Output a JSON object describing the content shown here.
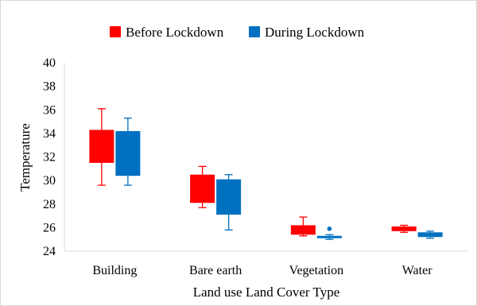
{
  "chart_data": {
    "type": "boxplot",
    "title": "",
    "xlabel": "Land use Land Cover Type",
    "ylabel": "Temperature",
    "ylim": [
      24,
      40
    ],
    "yticks": [
      24,
      26,
      28,
      30,
      32,
      34,
      36,
      38,
      40
    ],
    "grid": false,
    "legend_position": "top",
    "categories": [
      "Building",
      "Bare earth",
      "Vegetation",
      "Water"
    ],
    "series": [
      {
        "name": "Before Lockdown",
        "color": "#ff0000",
        "boxes": [
          {
            "min": 29.6,
            "q1": 31.5,
            "median": 31.6,
            "q3": 34.3,
            "max": 36.1,
            "outliers": []
          },
          {
            "min": 27.7,
            "q1": 28.1,
            "median": 28.2,
            "q3": 30.5,
            "max": 31.2,
            "outliers": []
          },
          {
            "min": 25.3,
            "q1": 25.4,
            "median": 25.5,
            "q3": 26.2,
            "max": 26.9,
            "outliers": []
          },
          {
            "min": 25.6,
            "q1": 25.7,
            "median": 25.9,
            "q3": 26.1,
            "max": 26.2,
            "outliers": []
          }
        ]
      },
      {
        "name": "During Lockdown",
        "color": "#0070c0",
        "boxes": [
          {
            "min": 29.6,
            "q1": 30.4,
            "median": 30.5,
            "q3": 34.2,
            "max": 35.3,
            "outliers": []
          },
          {
            "min": 25.8,
            "q1": 27.1,
            "median": 27.2,
            "q3": 30.1,
            "max": 30.5,
            "outliers": []
          },
          {
            "min": 25.0,
            "q1": 25.1,
            "median": 25.2,
            "q3": 25.3,
            "max": 25.4,
            "outliers": [
              25.9
            ]
          },
          {
            "min": 25.1,
            "q1": 25.2,
            "median": 25.5,
            "q3": 25.6,
            "max": 25.7,
            "outliers": []
          }
        ]
      }
    ]
  }
}
